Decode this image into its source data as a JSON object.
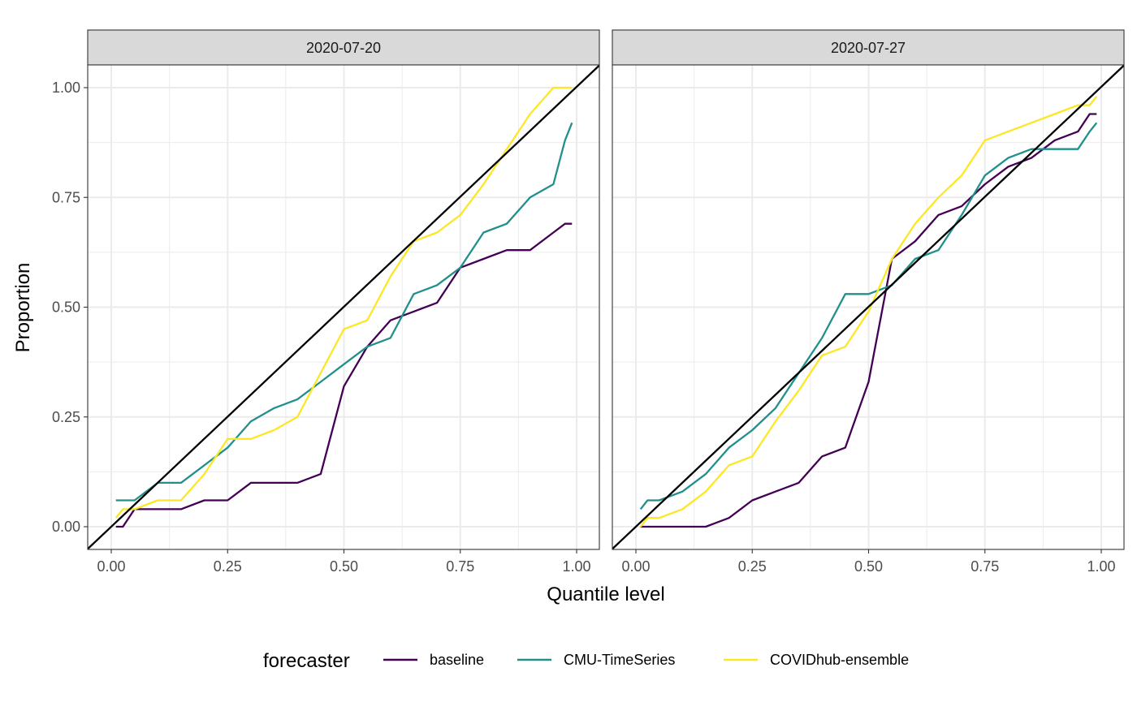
{
  "chart_data": {
    "type": "line",
    "xlabel": "Quantile level",
    "ylabel": "Proportion",
    "xlim": [
      0,
      1
    ],
    "ylim": [
      0,
      1
    ],
    "x_ticks": [
      "0.00",
      "0.25",
      "0.50",
      "0.75",
      "1.00"
    ],
    "y_ticks": [
      "0.00",
      "0.25",
      "0.50",
      "0.75",
      "1.00"
    ],
    "grid": true,
    "reference_line": "y = x",
    "legend": {
      "title": "forecaster",
      "position": "bottom",
      "entries": [
        "baseline",
        "CMU-TimeSeries",
        "COVIDhub-ensemble"
      ]
    },
    "colors": {
      "baseline": "#440154",
      "CMU-TimeSeries": "#21908C",
      "COVIDhub-ensemble": "#FDE725",
      "reference": "#000000"
    },
    "x": [
      0.01,
      0.025,
      0.05,
      0.1,
      0.15,
      0.2,
      0.25,
      0.3,
      0.35,
      0.4,
      0.45,
      0.5,
      0.55,
      0.6,
      0.65,
      0.7,
      0.75,
      0.8,
      0.85,
      0.9,
      0.95,
      0.975,
      0.99
    ],
    "panels": [
      {
        "label": "2020-07-20",
        "series": [
          {
            "name": "baseline",
            "values": [
              0.0,
              0.0,
              0.04,
              0.04,
              0.04,
              0.06,
              0.06,
              0.1,
              0.1,
              0.1,
              0.12,
              0.32,
              0.41,
              0.47,
              0.49,
              0.51,
              0.59,
              0.61,
              0.63,
              0.63,
              0.67,
              0.69,
              0.69
            ]
          },
          {
            "name": "CMU-TimeSeries",
            "values": [
              0.06,
              0.06,
              0.06,
              0.1,
              0.1,
              0.14,
              0.18,
              0.24,
              0.27,
              0.29,
              0.33,
              0.37,
              0.41,
              0.43,
              0.53,
              0.55,
              0.59,
              0.67,
              0.69,
              0.75,
              0.78,
              0.88,
              0.92
            ]
          },
          {
            "name": "COVIDhub-ensemble",
            "values": [
              0.02,
              0.04,
              0.04,
              0.06,
              0.06,
              0.12,
              0.2,
              0.2,
              0.22,
              0.25,
              0.35,
              0.45,
              0.47,
              0.57,
              0.65,
              0.67,
              0.71,
              0.78,
              0.86,
              0.94,
              1.0,
              1.0,
              1.0
            ]
          }
        ]
      },
      {
        "label": "2020-07-27",
        "series": [
          {
            "name": "baseline",
            "values": [
              0.0,
              0.0,
              0.0,
              0.0,
              0.0,
              0.02,
              0.06,
              0.08,
              0.1,
              0.16,
              0.18,
              0.33,
              0.61,
              0.65,
              0.71,
              0.73,
              0.78,
              0.82,
              0.84,
              0.88,
              0.9,
              0.94,
              0.94
            ]
          },
          {
            "name": "CMU-TimeSeries",
            "values": [
              0.04,
              0.06,
              0.06,
              0.08,
              0.12,
              0.18,
              0.22,
              0.27,
              0.35,
              0.43,
              0.53,
              0.53,
              0.55,
              0.61,
              0.63,
              0.71,
              0.8,
              0.84,
              0.86,
              0.86,
              0.86,
              0.9,
              0.92
            ]
          },
          {
            "name": "COVIDhub-ensemble",
            "values": [
              0.0,
              0.02,
              0.02,
              0.04,
              0.08,
              0.14,
              0.16,
              0.24,
              0.31,
              0.39,
              0.41,
              0.49,
              0.61,
              0.69,
              0.75,
              0.8,
              0.88,
              0.9,
              0.92,
              0.94,
              0.96,
              0.96,
              0.98
            ]
          }
        ]
      }
    ]
  }
}
